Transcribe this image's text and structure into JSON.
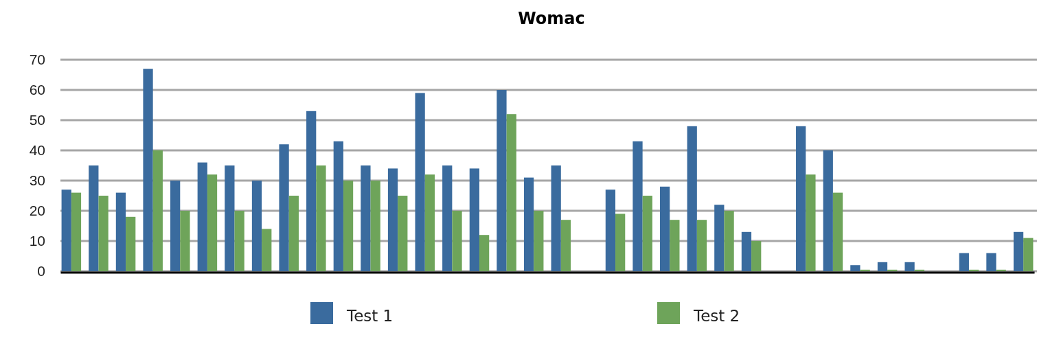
{
  "chart_data": {
    "type": "bar",
    "title": "Womac",
    "categories": [
      null,
      null,
      null,
      null,
      null,
      null,
      null,
      null,
      null,
      null,
      null,
      null,
      null,
      null,
      null,
      null,
      null,
      null,
      null,
      null,
      null,
      null,
      null,
      null,
      null,
      null,
      null,
      null,
      null,
      null,
      null,
      null,
      null,
      null,
      null,
      null
    ],
    "series": [
      {
        "name": "Test 1",
        "color": "#3a6b9e",
        "values": [
          27,
          35,
          26,
          67,
          30,
          36,
          35,
          30,
          42,
          53,
          43,
          35,
          34,
          59,
          35,
          34,
          60,
          31,
          35,
          null,
          27,
          43,
          28,
          48,
          22,
          13,
          null,
          48,
          40,
          2,
          3,
          3,
          null,
          6,
          6,
          13
        ]
      },
      {
        "name": "Test 2",
        "color": "#6ea45a",
        "values": [
          26,
          25,
          18,
          40,
          20,
          32,
          20,
          14,
          25,
          35,
          30,
          30,
          25,
          32,
          20,
          12,
          52,
          20,
          17,
          null,
          19,
          25,
          17,
          17,
          20,
          10,
          null,
          32,
          26,
          0.5,
          0.5,
          0.5,
          null,
          0.5,
          0.5,
          11
        ]
      }
    ],
    "ylim": [
      0,
      70
    ],
    "yticks": [
      0,
      10,
      20,
      30,
      40,
      50,
      60,
      70
    ],
    "grid": "y",
    "legend": "bottom"
  }
}
